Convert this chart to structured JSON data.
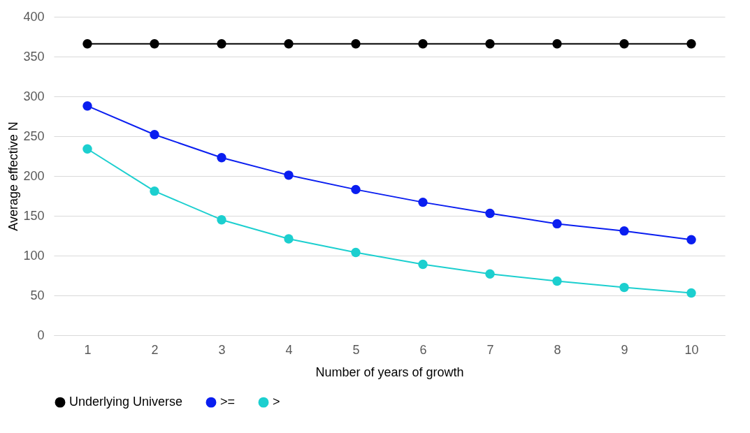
{
  "chart_data": {
    "type": "line",
    "xlabel": "Number of years of growth",
    "ylabel": "Average effective N",
    "categories": [
      "1",
      "2",
      "3",
      "4",
      "5",
      "6",
      "7",
      "8",
      "9",
      "10"
    ],
    "series": [
      {
        "name": "Underlying Universe",
        "color": "#000000",
        "values": [
          366,
          366,
          366,
          366,
          366,
          366,
          366,
          366,
          366,
          366
        ]
      },
      {
        "name": ">=",
        "color": "#0a1ef0",
        "values": [
          288,
          252,
          223,
          201,
          183,
          167,
          153,
          140,
          131,
          120
        ]
      },
      {
        "name": ">",
        "color": "#1ccfcf",
        "values": [
          234,
          181,
          145,
          121,
          104,
          89,
          77,
          68,
          60,
          53
        ]
      }
    ],
    "ylim": [
      0,
      400
    ],
    "yticks": [
      0,
      50,
      100,
      150,
      200,
      250,
      300,
      350,
      400
    ],
    "grid": "y",
    "legend": "bottom",
    "marker": "circle"
  }
}
